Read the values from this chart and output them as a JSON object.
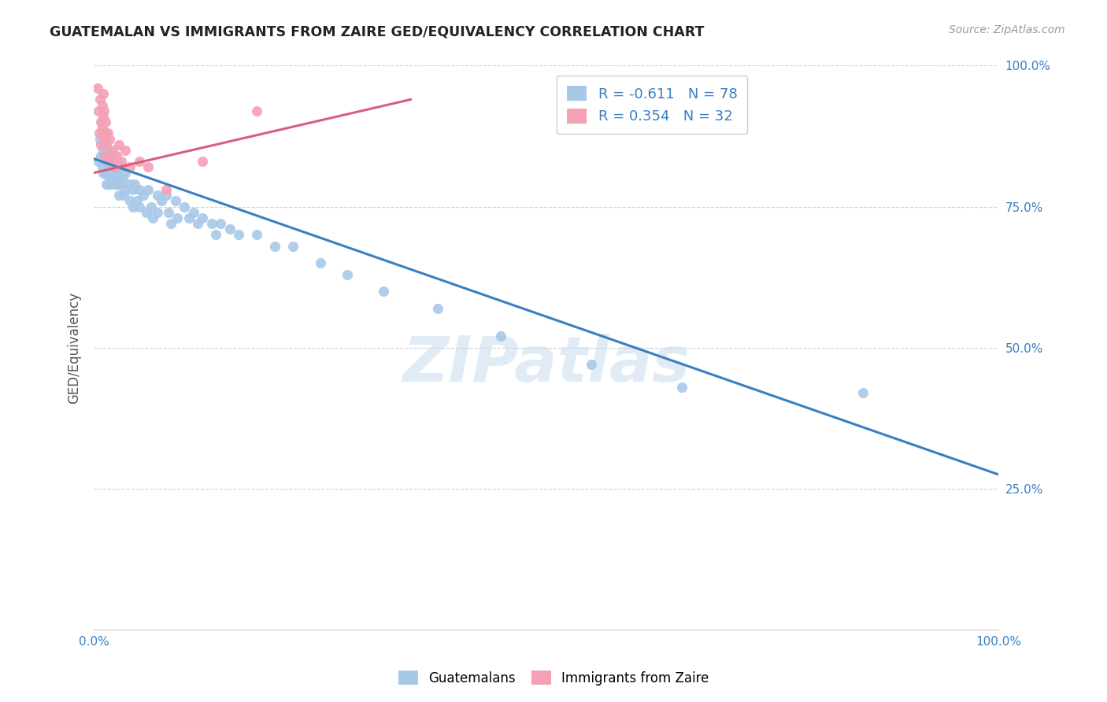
{
  "title": "GUATEMALAN VS IMMIGRANTS FROM ZAIRE GED/EQUIVALENCY CORRELATION CHART",
  "source": "Source: ZipAtlas.com",
  "ylabel": "GED/Equivalency",
  "xlim": [
    0,
    1
  ],
  "ylim": [
    0,
    1
  ],
  "blue_color": "#a8c8e8",
  "pink_color": "#f4a0b5",
  "blue_line_color": "#3a7fc1",
  "pink_line_color": "#d45f82",
  "legend_text_color": "#3a7fc1",
  "right_tick_color": "#3a7fc1",
  "blue_R": "-0.611",
  "blue_N": "78",
  "pink_R": "0.354",
  "pink_N": "32",
  "watermark": "ZIPatlas",
  "blue_scatter_x": [
    0.005,
    0.007,
    0.008,
    0.009,
    0.01,
    0.01,
    0.01,
    0.012,
    0.012,
    0.013,
    0.013,
    0.014,
    0.015,
    0.015,
    0.015,
    0.016,
    0.017,
    0.018,
    0.018,
    0.02,
    0.02,
    0.022,
    0.022,
    0.023,
    0.024,
    0.025,
    0.025,
    0.026,
    0.027,
    0.028,
    0.03,
    0.03,
    0.032,
    0.033,
    0.035,
    0.035,
    0.04,
    0.04,
    0.042,
    0.043,
    0.045,
    0.048,
    0.05,
    0.05,
    0.055,
    0.058,
    0.06,
    0.063,
    0.065,
    0.07,
    0.07,
    0.075,
    0.08,
    0.082,
    0.085,
    0.09,
    0.092,
    0.1,
    0.105,
    0.11,
    0.115,
    0.12,
    0.13,
    0.135,
    0.14,
    0.15,
    0.16,
    0.18,
    0.2,
    0.22,
    0.25,
    0.28,
    0.32,
    0.38,
    0.45,
    0.55,
    0.65,
    0.85
  ],
  "blue_scatter_y": [
    0.83,
    0.87,
    0.84,
    0.82,
    0.88,
    0.85,
    0.81,
    0.86,
    0.83,
    0.84,
    0.81,
    0.79,
    0.85,
    0.82,
    0.79,
    0.83,
    0.8,
    0.82,
    0.79,
    0.83,
    0.8,
    0.84,
    0.81,
    0.79,
    0.82,
    0.83,
    0.8,
    0.81,
    0.79,
    0.77,
    0.82,
    0.79,
    0.8,
    0.77,
    0.81,
    0.78,
    0.79,
    0.76,
    0.78,
    0.75,
    0.79,
    0.76,
    0.78,
    0.75,
    0.77,
    0.74,
    0.78,
    0.75,
    0.73,
    0.77,
    0.74,
    0.76,
    0.77,
    0.74,
    0.72,
    0.76,
    0.73,
    0.75,
    0.73,
    0.74,
    0.72,
    0.73,
    0.72,
    0.7,
    0.72,
    0.71,
    0.7,
    0.7,
    0.68,
    0.68,
    0.65,
    0.63,
    0.6,
    0.57,
    0.52,
    0.47,
    0.43,
    0.42
  ],
  "pink_scatter_x": [
    0.004,
    0.005,
    0.006,
    0.007,
    0.008,
    0.008,
    0.009,
    0.009,
    0.01,
    0.01,
    0.011,
    0.011,
    0.012,
    0.012,
    0.013,
    0.014,
    0.015,
    0.016,
    0.017,
    0.018,
    0.02,
    0.022,
    0.025,
    0.028,
    0.03,
    0.035,
    0.04,
    0.05,
    0.06,
    0.08,
    0.12,
    0.18
  ],
  "pink_scatter_y": [
    0.96,
    0.92,
    0.88,
    0.94,
    0.9,
    0.86,
    0.93,
    0.89,
    0.95,
    0.91,
    0.87,
    0.92,
    0.88,
    0.84,
    0.9,
    0.86,
    0.88,
    0.84,
    0.87,
    0.83,
    0.85,
    0.82,
    0.84,
    0.86,
    0.83,
    0.85,
    0.82,
    0.83,
    0.82,
    0.78,
    0.83,
    0.92
  ],
  "blue_trendline_x": [
    0.0,
    1.0
  ],
  "blue_trendline_y": [
    0.835,
    0.275
  ],
  "pink_trendline_x": [
    0.0,
    0.35
  ],
  "pink_trendline_y": [
    0.81,
    0.94
  ]
}
